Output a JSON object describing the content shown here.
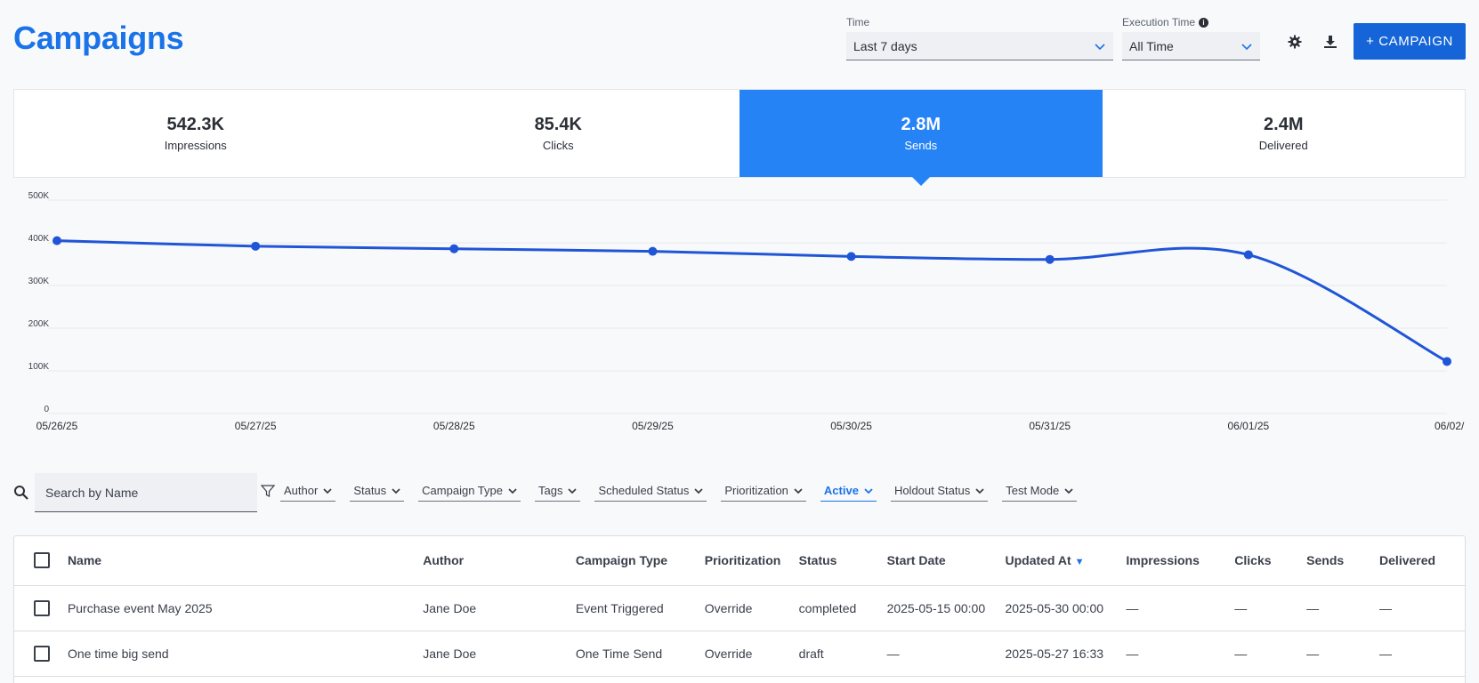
{
  "header": {
    "title": "Campaigns",
    "time_label": "Time",
    "time_value": "Last 7 days",
    "exec_label": "Execution Time",
    "exec_value": "All Time",
    "campaign_button": "+ CAMPAIGN"
  },
  "metrics": [
    {
      "value": "542.3K",
      "label": "Impressions"
    },
    {
      "value": "85.4K",
      "label": "Clicks"
    },
    {
      "value": "2.8M",
      "label": "Sends"
    },
    {
      "value": "2.4M",
      "label": "Delivered"
    }
  ],
  "active_metric": "Sends",
  "chart_data": {
    "type": "line",
    "x": [
      "05/26/25",
      "05/27/25",
      "05/28/25",
      "05/29/25",
      "05/30/25",
      "05/31/25",
      "06/01/25",
      "06/02/"
    ],
    "series": [
      {
        "values": [
          405000,
          392000,
          386000,
          380000,
          368000,
          361000,
          372000,
          122000
        ]
      }
    ],
    "yticks": [
      "0",
      "100K",
      "200K",
      "300K",
      "400K",
      "500K"
    ],
    "ylim": [
      0,
      500000
    ],
    "grid": true,
    "color": "#1f55d6"
  },
  "filters": {
    "search_placeholder": "Search by Name",
    "chips": [
      {
        "label": "Author",
        "active": false
      },
      {
        "label": "Status",
        "active": false
      },
      {
        "label": "Campaign Type",
        "active": false
      },
      {
        "label": "Tags",
        "active": false
      },
      {
        "label": "Scheduled Status",
        "active": false
      },
      {
        "label": "Prioritization",
        "active": false
      },
      {
        "label": "Active",
        "active": true
      },
      {
        "label": "Holdout Status",
        "active": false
      },
      {
        "label": "Test Mode",
        "active": false
      }
    ]
  },
  "table": {
    "columns": [
      "Name",
      "Author",
      "Campaign Type",
      "Prioritization",
      "Status",
      "Start Date",
      "Updated At",
      "Impressions",
      "Clicks",
      "Sends",
      "Delivered"
    ],
    "sorted_column": "Updated At",
    "rows": [
      [
        "Purchase event May 2025",
        "Jane Doe",
        "Event Triggered",
        "Override",
        "completed",
        "2025-05-15 00:00",
        "2025-05-30 00:00",
        "—",
        "—",
        "—",
        "—"
      ],
      [
        "One time big send",
        "Jane Doe",
        "One Time Send",
        "Override",
        "draft",
        "—",
        "2025-05-27 16:33",
        "—",
        "—",
        "—",
        "—"
      ]
    ]
  }
}
